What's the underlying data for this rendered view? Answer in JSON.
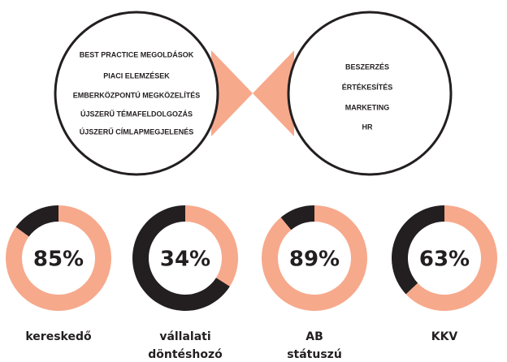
{
  "left_circle": {
    "items": [
      "BEST PRACTICE MEGOLDÁSOK",
      "PIACI ELEMZÉSEK",
      "EMBERKÖZPONTÚ MEGKÖZELÍTÉS",
      "ÚJSZERŰ TÉMAFELDOLGOZÁS",
      "ÚJSZERŰ CÍMLAPMEGJELENÉS"
    ]
  },
  "right_circle": {
    "items": [
      "BESZERZÉS",
      "ÉRTÉKESÍTÉS",
      "MARKETING",
      "HR"
    ]
  },
  "chart_data": {
    "type": "donut",
    "categories": [
      [
        "kereskedő"
      ],
      [
        "vállalati",
        "döntéshozó"
      ],
      [
        "AB",
        "státuszú"
      ],
      [
        "KKV"
      ]
    ],
    "values": [
      85,
      34,
      89,
      63
    ],
    "value_labels": [
      "85%",
      "34%",
      "89%",
      "63%"
    ],
    "color": "#f7a98c",
    "rest_color": "#231f20"
  }
}
